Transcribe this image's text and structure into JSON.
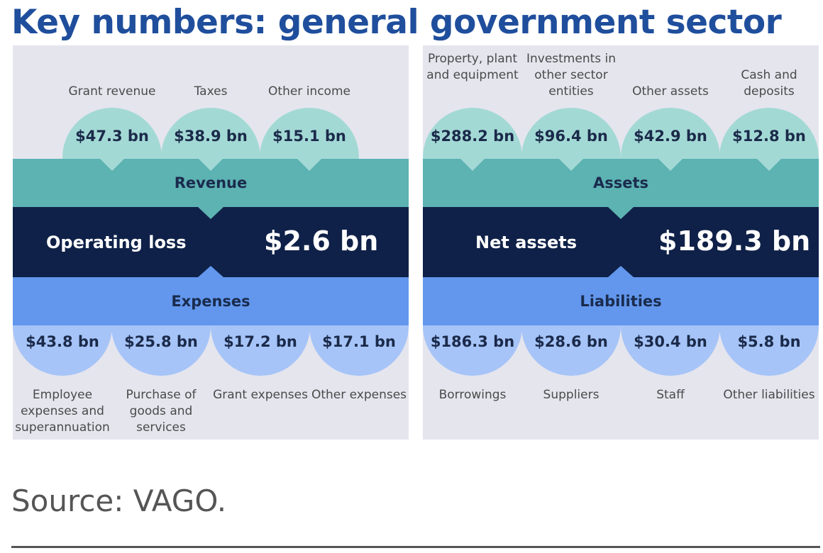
{
  "title": "Key numbers: general government sector",
  "left_panel": {
    "top_band": "Revenue",
    "bottom_band": "Expenses",
    "middle_label": "Operating loss",
    "middle_value": "$2.6 bn",
    "top_items": [
      {
        "label": "Grant revenue",
        "value": "$47.3 bn"
      },
      {
        "label": "Taxes",
        "value": "$38.9 bn"
      },
      {
        "label": "Other income",
        "value": "$15.1 bn"
      }
    ],
    "bottom_items": [
      {
        "label": "Employee expenses and superannuation",
        "value": "$43.8 bn"
      },
      {
        "label": "Purchase of goods and services",
        "value": "$25.8 bn"
      },
      {
        "label": "Grant expenses",
        "value": "$17.2 bn"
      },
      {
        "label": "Other expenses",
        "value": "$17.1 bn"
      }
    ]
  },
  "right_panel": {
    "top_band": "Assets",
    "bottom_band": "Liabilities",
    "middle_label": "Net assets",
    "middle_value": "$189.3 bn",
    "top_items": [
      {
        "label": "Property, plant and equipment",
        "value": "$288.2 bn"
      },
      {
        "label": "Investments in other sector entities",
        "value": "$96.4 bn"
      },
      {
        "label": "Other assets",
        "value": "$42.9 bn"
      },
      {
        "label": "Cash and deposits",
        "value": "$12.8 bn"
      }
    ],
    "bottom_items": [
      {
        "label": "Borrowings",
        "value": "$186.3 bn"
      },
      {
        "label": "Suppliers",
        "value": "$28.6 bn"
      },
      {
        "label": "Staff",
        "value": "$30.4 bn"
      },
      {
        "label": "Other liabilities",
        "value": "$5.8 bn"
      }
    ]
  },
  "source": "Source: VAGO.",
  "colors": {
    "title": "#1f4e9c",
    "panel_bg": "#e5e5ee",
    "teal_light": "#a3d9d5",
    "teal": "#5db2b2",
    "navy": "#0f2148",
    "blue": "#6297ed",
    "blue_light": "#a6c4f7"
  }
}
